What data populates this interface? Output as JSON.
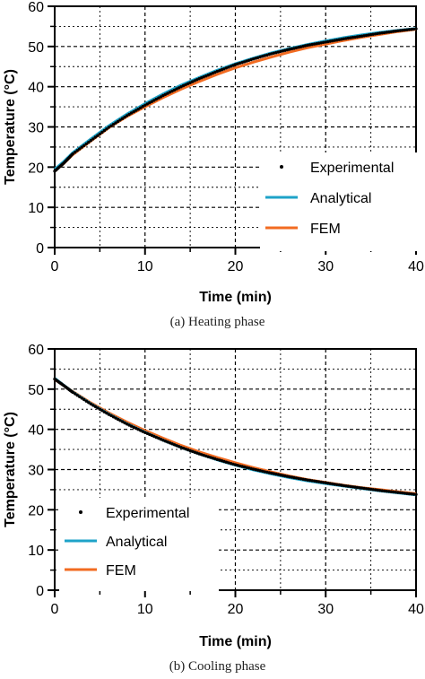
{
  "chart_data": [
    {
      "type": "line",
      "caption": "(a) Heating phase",
      "xlabel": "Time (min)",
      "ylabel": "Temperature (°C)",
      "xlim": [
        0,
        40
      ],
      "ylim": [
        0,
        60
      ],
      "xticks": [
        0,
        10,
        20,
        30,
        40
      ],
      "yticks": [
        0,
        10,
        20,
        30,
        40,
        50,
        60
      ],
      "grid": true,
      "legend_position": "bottom-right",
      "series": [
        {
          "name": "Experimental",
          "style": "dots",
          "color": "#000000",
          "x": [
            0,
            1,
            2,
            4,
            6,
            8,
            10,
            12,
            14,
            16,
            18,
            20,
            22,
            24,
            26,
            28,
            30,
            32,
            34,
            36,
            38,
            40
          ],
          "y": [
            19.0,
            21.0,
            23.3,
            26.6,
            29.9,
            32.8,
            35.4,
            37.8,
            40.0,
            42.0,
            43.8,
            45.5,
            46.9,
            48.2,
            49.3,
            50.3,
            51.1,
            51.9,
            52.6,
            53.3,
            53.9,
            54.4
          ]
        },
        {
          "name": "Analytical",
          "style": "line",
          "color": "#1ea3c8",
          "x": [
            0,
            1,
            2,
            4,
            6,
            8,
            10,
            12,
            14,
            16,
            18,
            20,
            22,
            24,
            26,
            28,
            30,
            32,
            34,
            36,
            38,
            40
          ],
          "y": [
            19.5,
            21.4,
            23.6,
            27.0,
            30.3,
            33.2,
            35.8,
            38.2,
            40.4,
            42.3,
            44.1,
            45.7,
            47.1,
            48.4,
            49.5,
            50.5,
            51.4,
            52.2,
            52.9,
            53.5,
            54.0,
            54.5
          ]
        },
        {
          "name": "FEM",
          "style": "line",
          "color": "#f26b21",
          "x": [
            0,
            1,
            2,
            4,
            6,
            8,
            10,
            12,
            14,
            16,
            18,
            20,
            22,
            24,
            26,
            28,
            30,
            32,
            34,
            36,
            38,
            40
          ],
          "y": [
            19.0,
            20.9,
            23.1,
            26.5,
            29.8,
            32.6,
            35.0,
            37.3,
            39.4,
            41.3,
            43.1,
            44.7,
            46.1,
            47.4,
            48.6,
            49.7,
            50.6,
            51.5,
            52.3,
            53.0,
            53.7,
            54.3
          ]
        }
      ],
      "legend": [
        "Experimental",
        "Analytical",
        "FEM"
      ]
    },
    {
      "type": "line",
      "caption": "(b) Cooling phase",
      "xlabel": "Time (min)",
      "ylabel": "Temperature (°C)",
      "xlim": [
        0,
        40
      ],
      "ylim": [
        0,
        60
      ],
      "xticks": [
        0,
        10,
        20,
        30,
        40
      ],
      "yticks": [
        0,
        10,
        20,
        30,
        40,
        50,
        60
      ],
      "grid": true,
      "legend_position": "bottom-left",
      "series": [
        {
          "name": "Experimental",
          "style": "dots",
          "color": "#000000",
          "x": [
            0,
            1,
            2,
            4,
            6,
            8,
            10,
            12,
            14,
            16,
            18,
            20,
            22,
            24,
            26,
            28,
            30,
            32,
            34,
            36,
            38,
            40
          ],
          "y": [
            52.5,
            50.9,
            49.2,
            46.3,
            43.7,
            41.3,
            39.2,
            37.3,
            35.5,
            33.9,
            32.5,
            31.2,
            30.1,
            29.1,
            28.2,
            27.4,
            26.7,
            26.0,
            25.4,
            24.8,
            24.3,
            23.8
          ]
        },
        {
          "name": "Analytical",
          "style": "line",
          "color": "#1ea3c8",
          "x": [
            0,
            1,
            2,
            4,
            6,
            8,
            10,
            12,
            14,
            16,
            18,
            20,
            22,
            24,
            26,
            28,
            30,
            32,
            34,
            36,
            38,
            40
          ],
          "y": [
            52.7,
            51.0,
            49.3,
            46.4,
            43.8,
            41.4,
            39.3,
            37.3,
            35.5,
            33.9,
            32.4,
            31.1,
            29.9,
            28.9,
            28.0,
            27.2,
            26.5,
            25.9,
            25.3,
            24.7,
            24.2,
            23.7
          ]
        },
        {
          "name": "FEM",
          "style": "line",
          "color": "#f26b21",
          "x": [
            0,
            1,
            2,
            4,
            6,
            8,
            10,
            12,
            14,
            16,
            18,
            20,
            22,
            24,
            26,
            28,
            30,
            32,
            34,
            36,
            38,
            40
          ],
          "y": [
            52.4,
            50.9,
            49.4,
            46.6,
            44.1,
            41.8,
            39.7,
            37.8,
            36.0,
            34.4,
            33.0,
            31.7,
            30.5,
            29.4,
            28.4,
            27.5,
            26.8,
            26.1,
            25.5,
            25.0,
            24.5,
            24.0
          ]
        }
      ],
      "legend": [
        "Experimental",
        "Analytical",
        "FEM"
      ]
    }
  ]
}
